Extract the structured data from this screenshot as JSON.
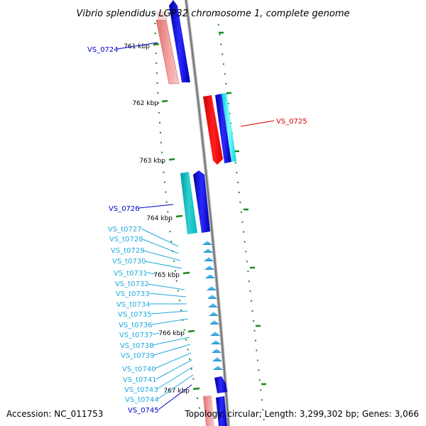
{
  "title": "Vibrio splendidus LGP32 chromosome 1, complete genome",
  "footer": {
    "accession": "Accession: NC_011753",
    "summary": "Topology: circular; Length: 3,299,302 bp; Genes: 3,066"
  },
  "colors": {
    "backbone": "#8c8c8c",
    "ruler": "#1a8a1a",
    "gene_label_dark": "#0000cc",
    "gene_label_trna": "#22aadd",
    "gene_label_red": "#dd0000"
  },
  "ticks": [
    "761 kbp",
    "762 kbp",
    "763 kbp",
    "764 kbp",
    "765 kbp",
    "766 kbp",
    "767 kbp"
  ],
  "genes": [
    {
      "id": "VS_0724",
      "color": "#0000cc"
    },
    {
      "id": "VS_0725",
      "color": "#dd0000"
    },
    {
      "id": "VS_0726",
      "color": "#0000cc"
    },
    {
      "id": "VS_t0727",
      "color": "#22aadd"
    },
    {
      "id": "VS_t0728",
      "color": "#22aadd"
    },
    {
      "id": "VS_t0729",
      "color": "#22aadd"
    },
    {
      "id": "VS_t0730",
      "color": "#22aadd"
    },
    {
      "id": "VS_t0731",
      "color": "#22aadd"
    },
    {
      "id": "VS_t0732",
      "color": "#22aadd"
    },
    {
      "id": "VS_t0733",
      "color": "#22aadd"
    },
    {
      "id": "VS_t0734",
      "color": "#22aadd"
    },
    {
      "id": "VS_t0735",
      "color": "#22aadd"
    },
    {
      "id": "VS_t0736",
      "color": "#22aadd"
    },
    {
      "id": "VS_t0737",
      "color": "#22aadd"
    },
    {
      "id": "VS_t0738",
      "color": "#22aadd"
    },
    {
      "id": "VS_t0739",
      "color": "#22aadd"
    },
    {
      "id": "VS_t0740",
      "color": "#22aadd"
    },
    {
      "id": "VS_t0741",
      "color": "#22aadd"
    },
    {
      "id": "VS_t0743",
      "color": "#22aadd"
    },
    {
      "id": "VS_t0744",
      "color": "#22aadd"
    },
    {
      "id": "VS_0745",
      "color": "#0000cc"
    }
  ]
}
